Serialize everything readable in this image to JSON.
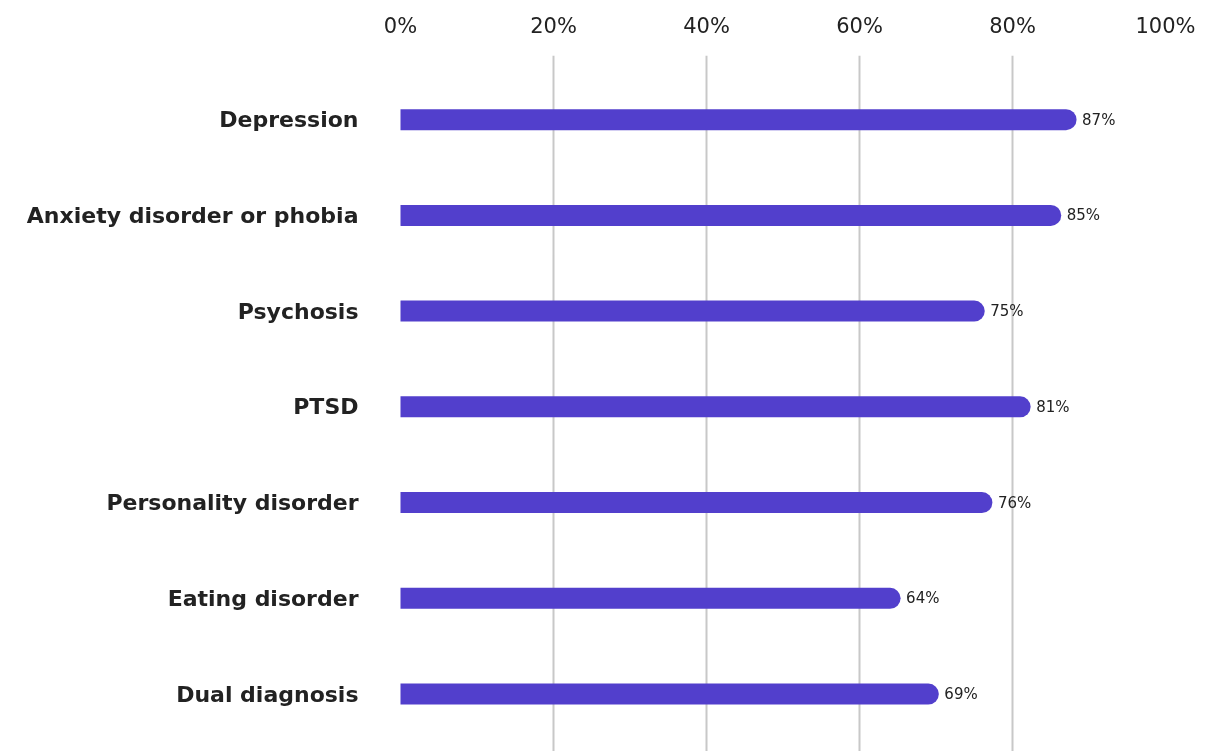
{
  "chart_data": {
    "type": "bar",
    "orientation": "horizontal",
    "categories": [
      "Depression",
      "Anxiety disorder or phobia",
      "Psychosis",
      "PTSD",
      "Personality disorder",
      "Eating disorder",
      "Dual diagnosis"
    ],
    "values": [
      87,
      85,
      75,
      81,
      76,
      64,
      69
    ],
    "value_labels": [
      "87%",
      "85%",
      "75%",
      "81%",
      "76%",
      "64%",
      "69%"
    ],
    "color": "#523fcc",
    "xlim": [
      0,
      100
    ],
    "xticks": [
      {
        "value": 0,
        "label": "0%"
      },
      {
        "value": 20,
        "label": "20%"
      },
      {
        "value": 40,
        "label": "40%"
      },
      {
        "value": 60,
        "label": "60%"
      },
      {
        "value": 80,
        "label": "80%"
      },
      {
        "value": 100,
        "label": "100%"
      }
    ],
    "grid": "x"
  }
}
